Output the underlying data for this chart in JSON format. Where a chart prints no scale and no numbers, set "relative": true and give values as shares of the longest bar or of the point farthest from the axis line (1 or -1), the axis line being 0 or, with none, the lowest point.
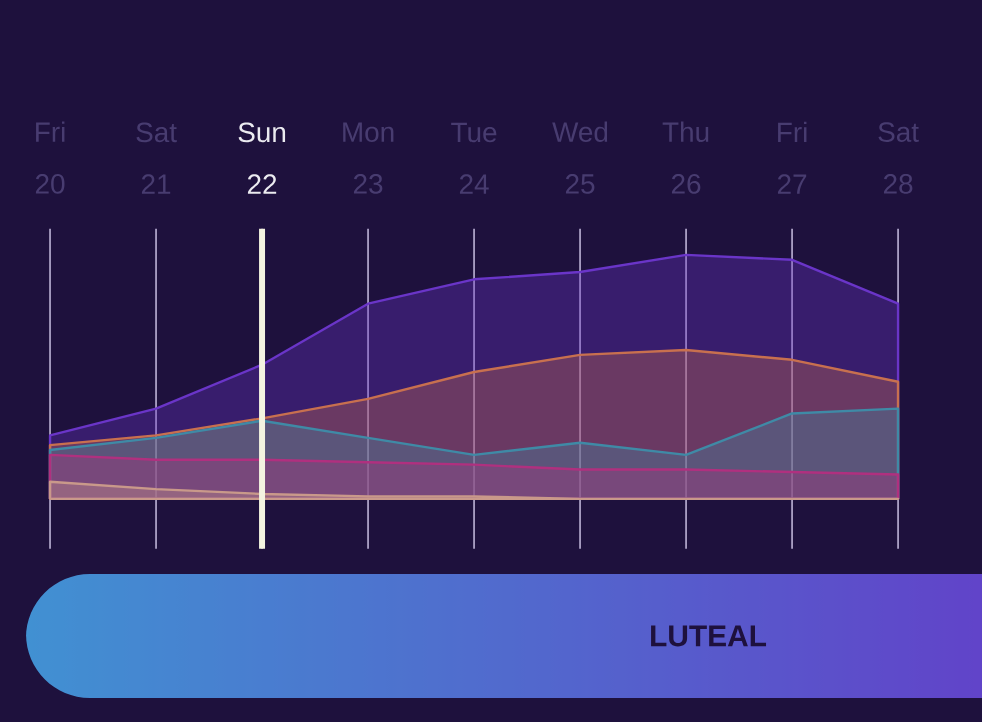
{
  "chart_data": {
    "type": "area",
    "relative": true,
    "grid": "x",
    "marker": "none",
    "categories": [
      "Fri 20",
      "Sat 21",
      "Sun 22",
      "Mon 23",
      "Tue 24",
      "Wed 25",
      "Thu 26",
      "Fri 27",
      "Sat 28"
    ],
    "series": [
      {
        "color": "#6a35c8",
        "values": [
          0.26,
          0.37,
          0.55,
          0.8,
          0.9,
          0.93,
          1.0,
          0.98,
          0.8
        ]
      },
      {
        "color": "#c8704f",
        "values": [
          0.22,
          0.26,
          0.33,
          0.41,
          0.52,
          0.59,
          0.61,
          0.57,
          0.48
        ]
      },
      {
        "color": "#3f8aa6",
        "values": [
          0.2,
          0.25,
          0.32,
          0.25,
          0.18,
          0.23,
          0.18,
          0.35,
          0.37
        ]
      },
      {
        "color": "#b0307f",
        "values": [
          0.18,
          0.16,
          0.16,
          0.15,
          0.14,
          0.12,
          0.12,
          0.11,
          0.1
        ]
      },
      {
        "color": "#c9998a",
        "values": [
          0.07,
          0.04,
          0.02,
          0.01,
          0.01,
          0,
          0,
          0,
          0
        ]
      }
    ],
    "ref_lines": [
      {
        "axis": "x",
        "value": "Sun 22",
        "color": "#f4f4e0"
      }
    ],
    "annotations": [
      "LUTEAL"
    ]
  }
}
